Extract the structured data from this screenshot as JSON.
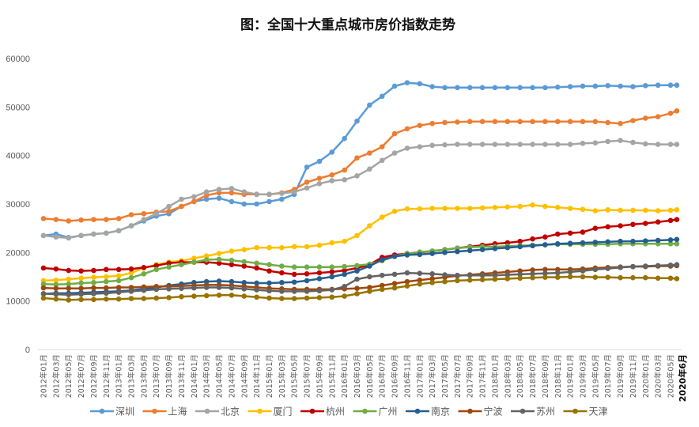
{
  "chart_data": {
    "type": "line",
    "title": "图：全国十大重点城市房价指数走势",
    "xlabel": "",
    "ylabel": "",
    "ylim": [
      0,
      60000
    ],
    "yticks": [
      0,
      10000,
      20000,
      30000,
      40000,
      50000,
      60000
    ],
    "grid": false,
    "legend": "bottom",
    "x": [
      "2012年01月",
      "2012年03月",
      "2012年05月",
      "2012年07月",
      "2012年09月",
      "2012年11月",
      "2013年01月",
      "2013年03月",
      "2013年05月",
      "2013年07月",
      "2013年09月",
      "2013年11月",
      "2014年01月",
      "2014年03月",
      "2014年05月",
      "2014年07月",
      "2014年09月",
      "2014年11月",
      "2015年01月",
      "2015年03月",
      "2015年05月",
      "2015年07月",
      "2015年09月",
      "2015年11月",
      "2016年01月",
      "2016年03月",
      "2016年05月",
      "2016年07月",
      "2016年09月",
      "2016年11月",
      "2017年01月",
      "2017年03月",
      "2017年05月",
      "2017年07月",
      "2017年09月",
      "2017年11月",
      "2018年01月",
      "2018年03月",
      "2018年05月",
      "2018年07月",
      "2018年09月",
      "2018年11月",
      "2019年01月",
      "2019年03月",
      "2019年05月",
      "2019年07月",
      "2019年09月",
      "2019年11月",
      "2020年01月",
      "2020年03月",
      "2020年05月",
      "2020年6月"
    ],
    "series": [
      {
        "name": "深圳",
        "color": "#5b9bd5",
        "values": [
          23500,
          23800,
          23100,
          23500,
          23800,
          24000,
          24500,
          25500,
          26500,
          27500,
          28000,
          29500,
          30500,
          31000,
          31200,
          30500,
          30000,
          30000,
          30500,
          31000,
          32000,
          37600,
          38800,
          40700,
          43500,
          47100,
          50400,
          52200,
          54300,
          55000,
          54800,
          54200,
          54000,
          54000,
          54000,
          54000,
          54000,
          54000,
          54000,
          54000,
          54000,
          54100,
          54200,
          54300,
          54300,
          54400,
          54300,
          54200,
          54400,
          54500,
          54500,
          54500
        ]
      },
      {
        "name": "上海",
        "color": "#ed7d31",
        "values": [
          27000,
          26800,
          26500,
          26700,
          26800,
          26800,
          27000,
          27800,
          28000,
          28300,
          28500,
          29500,
          30500,
          31800,
          32300,
          32300,
          32000,
          32000,
          32000,
          32300,
          33000,
          34500,
          35300,
          36000,
          37000,
          39500,
          40500,
          41800,
          44500,
          45500,
          46200,
          46600,
          46800,
          46900,
          47000,
          47000,
          47000,
          47000,
          47000,
          47000,
          47000,
          47000,
          47000,
          47000,
          47000,
          46800,
          46600,
          47200,
          47700,
          48000,
          48700,
          49200
        ]
      },
      {
        "name": "北京",
        "color": "#a5a5a5",
        "values": [
          23500,
          23200,
          23000,
          23500,
          23800,
          24000,
          24500,
          25500,
          26800,
          28000,
          29500,
          31000,
          31500,
          32500,
          33000,
          33200,
          32500,
          32000,
          32000,
          32200,
          32500,
          33300,
          34200,
          34800,
          35000,
          35800,
          37200,
          39000,
          40500,
          41500,
          41800,
          42100,
          42200,
          42300,
          42300,
          42300,
          42300,
          42300,
          42300,
          42300,
          42300,
          42300,
          42300,
          42500,
          42600,
          42900,
          43100,
          42700,
          42400,
          42300,
          42300,
          42300
        ]
      },
      {
        "name": "厦门",
        "color": "#ffc000",
        "values": [
          14200,
          14300,
          14500,
          14700,
          14900,
          15000,
          15200,
          15800,
          16800,
          17500,
          18000,
          18300,
          18800,
          19300,
          19800,
          20300,
          20600,
          21000,
          21000,
          21000,
          21200,
          21200,
          21500,
          22000,
          22300,
          23500,
          25500,
          27300,
          28500,
          29000,
          29000,
          29100,
          29100,
          29100,
          29100,
          29200,
          29300,
          29400,
          29500,
          29800,
          29500,
          29300,
          29100,
          28900,
          28600,
          28800,
          28700,
          28700,
          28700,
          28600,
          28700,
          28800
        ]
      },
      {
        "name": "杭州",
        "color": "#c00000",
        "values": [
          16800,
          16600,
          16300,
          16200,
          16300,
          16500,
          16500,
          16600,
          16900,
          17300,
          17800,
          18000,
          18000,
          18000,
          17800,
          17500,
          17200,
          16800,
          16200,
          15800,
          15500,
          15600,
          15800,
          16000,
          16300,
          16800,
          17500,
          19000,
          19500,
          19800,
          20000,
          20300,
          20600,
          20900,
          21200,
          21500,
          21800,
          22000,
          22300,
          22800,
          23200,
          23800,
          24000,
          24200,
          25000,
          25300,
          25500,
          25800,
          26000,
          26300,
          26600,
          26800
        ]
      },
      {
        "name": "广州",
        "color": "#70ad47",
        "values": [
          13500,
          13400,
          13500,
          13700,
          13800,
          14000,
          14200,
          14800,
          15600,
          16500,
          17000,
          17500,
          18000,
          18500,
          18600,
          18400,
          18100,
          17800,
          17500,
          17200,
          17000,
          17000,
          17000,
          17000,
          17100,
          17300,
          17600,
          18300,
          19200,
          19800,
          20100,
          20300,
          20600,
          20900,
          21100,
          21200,
          21200,
          21300,
          21400,
          21500,
          21600,
          21700,
          21700,
          21700,
          21700,
          21700,
          21800,
          21800,
          21800,
          21800,
          21800,
          21800
        ]
      },
      {
        "name": "南京",
        "color": "#255e91",
        "values": [
          11500,
          11600,
          11600,
          11700,
          11800,
          11900,
          12000,
          12200,
          12500,
          12800,
          13200,
          13500,
          13800,
          14000,
          14100,
          14000,
          13800,
          13700,
          13700,
          13800,
          13900,
          14200,
          14600,
          15000,
          15500,
          16200,
          17200,
          18500,
          19200,
          19500,
          19600,
          19800,
          20000,
          20200,
          20400,
          20600,
          20800,
          21000,
          21200,
          21400,
          21600,
          21800,
          21900,
          22000,
          22100,
          22200,
          22300,
          22300,
          22400,
          22500,
          22600,
          22700
        ]
      },
      {
        "name": "宁波",
        "color": "#9e480e",
        "values": [
          12700,
          12600,
          12600,
          12600,
          12700,
          12700,
          12800,
          12800,
          12900,
          13000,
          13000,
          13100,
          13200,
          13300,
          13300,
          13200,
          13000,
          12800,
          12600,
          12500,
          12400,
          12400,
          12400,
          12400,
          12500,
          12600,
          12800,
          13200,
          13600,
          14000,
          14300,
          14600,
          14900,
          15200,
          15400,
          15600,
          15800,
          16000,
          16200,
          16400,
          16500,
          16500,
          16500,
          16600,
          16800,
          16900,
          17000,
          17100,
          17100,
          17200,
          17200,
          17300
        ]
      },
      {
        "name": "苏州",
        "color": "#636363",
        "values": [
          11500,
          11400,
          11300,
          11400,
          11500,
          11600,
          11800,
          12000,
          12200,
          12400,
          12500,
          12600,
          12700,
          12800,
          12800,
          12700,
          12500,
          12300,
          12100,
          12000,
          12000,
          12000,
          12100,
          12300,
          13000,
          14500,
          15000,
          15300,
          15500,
          15800,
          15700,
          15600,
          15400,
          15300,
          15300,
          15300,
          15300,
          15400,
          15500,
          15600,
          15700,
          15800,
          16000,
          16200,
          16500,
          16700,
          16900,
          17100,
          17200,
          17300,
          17400,
          17500
        ]
      },
      {
        "name": "天津",
        "color": "#997300",
        "values": [
          10600,
          10400,
          10200,
          10300,
          10300,
          10400,
          10400,
          10500,
          10500,
          10600,
          10700,
          10900,
          11000,
          11100,
          11200,
          11200,
          11000,
          10800,
          10600,
          10500,
          10500,
          10600,
          10700,
          10800,
          11000,
          11500,
          12000,
          12400,
          12700,
          13100,
          13500,
          13800,
          14000,
          14200,
          14300,
          14400,
          14500,
          14600,
          14700,
          14800,
          14900,
          14900,
          15000,
          15000,
          14900,
          14900,
          14800,
          14800,
          14800,
          14700,
          14700,
          14600
        ]
      }
    ]
  }
}
